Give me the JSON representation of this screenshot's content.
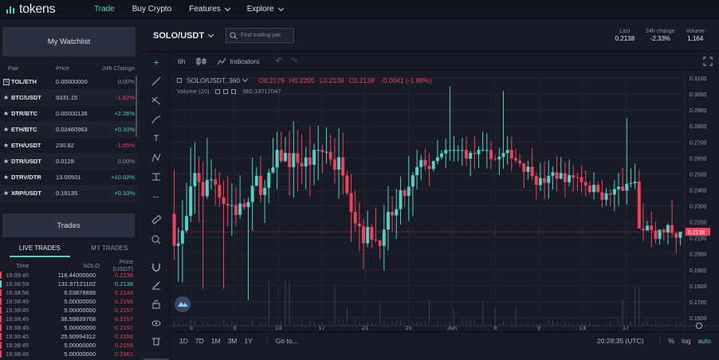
{
  "nav": {
    "logo_text": "tokens",
    "items": [
      {
        "label": "Trade",
        "active": true,
        "dropdown": false
      },
      {
        "label": "Buy Crypto",
        "active": false,
        "dropdown": false
      },
      {
        "label": "Features",
        "active": false,
        "dropdown": true
      },
      {
        "label": "Explore",
        "active": false,
        "dropdown": true
      }
    ]
  },
  "watchlist": {
    "title": "My Watchlist",
    "columns": [
      "Pair",
      "Price",
      "24h Change"
    ],
    "rows": [
      {
        "pair": "TOL/ETH",
        "price": "0.00000000",
        "change": "0.00%",
        "dir": "neu",
        "icon": "token-box"
      },
      {
        "pair": "BTC/USDT",
        "price": "9331.15",
        "change": "-1.62%",
        "dir": "neg",
        "icon": "star"
      },
      {
        "pair": "DTR/BTC",
        "price": "0.00000136",
        "change": "+2.26%",
        "dir": "pos",
        "icon": "star"
      },
      {
        "pair": "ETH/BTC",
        "price": "0.02460963",
        "change": "+0.10%",
        "dir": "pos",
        "icon": "star"
      },
      {
        "pair": "ETH/USDT",
        "price": "230.82",
        "change": "-1.65%",
        "dir": "neg",
        "icon": "star"
      },
      {
        "pair": "DTR/USDT",
        "price": "0.0128",
        "change": "0.00%",
        "dir": "neu",
        "icon": "star"
      },
      {
        "pair": "DTRV/DTR",
        "price": "13.00501",
        "change": "+10.02%",
        "dir": "pos",
        "icon": "star"
      },
      {
        "pair": "XRP/USDT",
        "price": "0.19135",
        "change": "+0.10%",
        "dir": "pos",
        "icon": "star"
      }
    ]
  },
  "trades": {
    "title": "Trades",
    "tabs": [
      "LIVE TRADES",
      "MY TRADES"
    ],
    "columns": [
      "Time",
      "SOLO",
      "Price (USDT)"
    ],
    "rows": [
      {
        "time": "19:39:40",
        "amount": "118.44000000",
        "price": "0.2138",
        "side": "sell"
      },
      {
        "time": "19:38:59",
        "amount": "131.97121102",
        "price": "0.2138",
        "side": "buy"
      },
      {
        "time": "19:38:58",
        "amount": "6.03878898",
        "price": "0.2143",
        "side": "sell"
      },
      {
        "time": "19:38:45",
        "amount": "5.00000000",
        "price": "0.2155",
        "side": "sell"
      },
      {
        "time": "19:38:45",
        "amount": "5.00000000",
        "price": "0.2157",
        "side": "sell"
      },
      {
        "time": "19:38:45",
        "amount": "36.59839768",
        "price": "0.2157",
        "side": "sell"
      },
      {
        "time": "19:38:45",
        "amount": "5.00000000",
        "price": "0.2157",
        "side": "sell"
      },
      {
        "time": "19:38:45",
        "amount": "25.90994312",
        "price": "0.2158",
        "side": "sell"
      },
      {
        "time": "19:38:45",
        "amount": "5.00000000",
        "price": "0.2159",
        "side": "sell"
      },
      {
        "time": "19:38:45",
        "amount": "5.00000000",
        "price": "0.2161",
        "side": "sell"
      }
    ]
  },
  "market": {
    "pair": "SOLO/USDT",
    "search_placeholder": "Find trading pair",
    "last_label": "Last",
    "last_value": "0.2138",
    "change_label": "24h change",
    "change_value": "-2.33%",
    "volume_label": "Volume",
    "volume_value": "1,164"
  },
  "chart_toolbar": {
    "interval": "6h",
    "indicators_label": "Indicators"
  },
  "chart_legend": {
    "symbol": "SOLO/USDT, 360",
    "open": "O0.2179",
    "high": "H0.2205",
    "low": "L0.2138",
    "close": "C0.2138",
    "change": "-0.0041 (-1.88%)",
    "volume_label": "Volume (20)",
    "volume_value": "560.33717047"
  },
  "chart_data": {
    "type": "candlestick",
    "y_ticks": [
      "0.3100",
      "0.3000",
      "0.2900",
      "0.2800",
      "0.2700",
      "0.2600",
      "0.2500",
      "0.2400",
      "0.2300",
      "0.2200",
      "0.2100",
      "0.2000",
      "0.1900",
      "0.1800",
      "0.1700",
      "0.1600"
    ],
    "ylim": [
      0.155,
      0.313
    ],
    "x_ticks": [
      "5",
      "9",
      "13",
      "17",
      "21",
      "25",
      "Jun",
      "5",
      "9",
      "13",
      "17"
    ],
    "last_price": "0.2138",
    "up_color": "#4fd3c4",
    "down_color": "#f0425d"
  },
  "bottom_bar": {
    "ranges": [
      "1D",
      "7D",
      "1M",
      "3M",
      "1Y"
    ],
    "goto_label": "Go to...",
    "clock": "20:28:35 (UTC)",
    "percent_label": "%",
    "log_label": "log",
    "auto_label": "auto"
  }
}
